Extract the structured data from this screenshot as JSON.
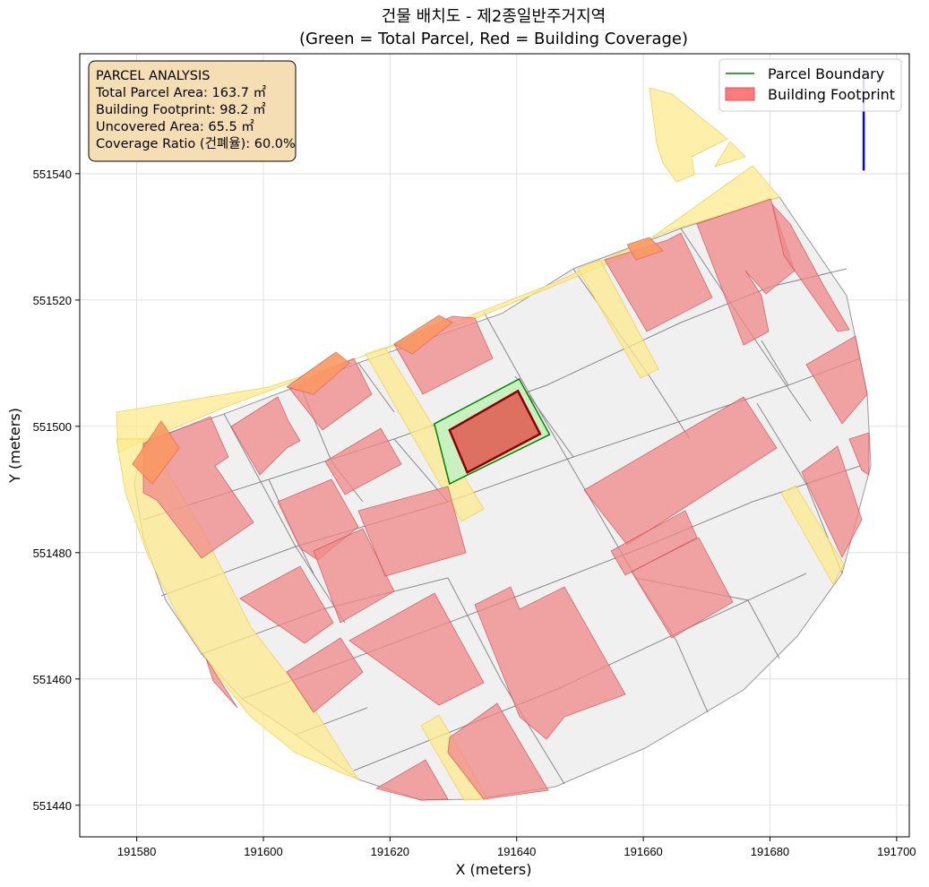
{
  "chart_data": {
    "type": "map",
    "title_line1": "건물 배치도 - 제2종일반주거지역",
    "title_line2": "(Green = Total Parcel, Red = Building Coverage)",
    "xlabel": "X (meters)",
    "ylabel": "Y (meters)",
    "xlim": [
      191571,
      191702
    ],
    "ylim": [
      551435,
      551559
    ],
    "xticks": [
      191580,
      191600,
      191620,
      191640,
      191660,
      191680,
      191700
    ],
    "yticks": [
      551440,
      551460,
      551480,
      551500,
      551520,
      551540
    ],
    "grid": true,
    "legend_position": "top-right",
    "legend": [
      {
        "label": "Parcel Boundary",
        "color": "#008000",
        "kind": "line"
      },
      {
        "label": "Building Footprint",
        "color": "#ff7b7b",
        "kind": "patch"
      }
    ],
    "info_box": {
      "position": "top-left",
      "lines": [
        "PARCEL ANALYSIS",
        "Total Parcel Area: 163.7 ㎡",
        "Building Footprint: 98.2 ㎡",
        "Uncovered Area: 65.5 ㎡",
        "Coverage Ratio (건폐율): 60.0%"
      ]
    },
    "target_parcel": {
      "area_m2": 163.7,
      "polygon": [
        [
          191627,
          551500.4
        ],
        [
          191640.4,
          551507.5
        ],
        [
          191645.2,
          551498.7
        ],
        [
          191629.4,
          551490.9
        ]
      ]
    },
    "target_building": {
      "area_m2": 98.2,
      "polygon": [
        [
          191629.4,
          551499.4
        ],
        [
          191640.2,
          551505.6
        ],
        [
          191643.7,
          551498.8
        ],
        [
          191632.2,
          551492.7
        ]
      ]
    },
    "north_arrow": {
      "x": 191694.8,
      "y": [
        551540.5,
        551556.5
      ],
      "color": "#0000ff"
    },
    "colors": {
      "parcel_fill": "#f0f0f0",
      "parcel_line": "#707070",
      "building_fill": "#f08888",
      "road_fill": "#fde98f",
      "target_parcel_fill": "#c8f0c0",
      "target_parcel_line": "#008000",
      "target_building_fill": "#dd7060",
      "target_building_line": "#8b0000",
      "info_box_bg": "#f5deb3"
    }
  }
}
